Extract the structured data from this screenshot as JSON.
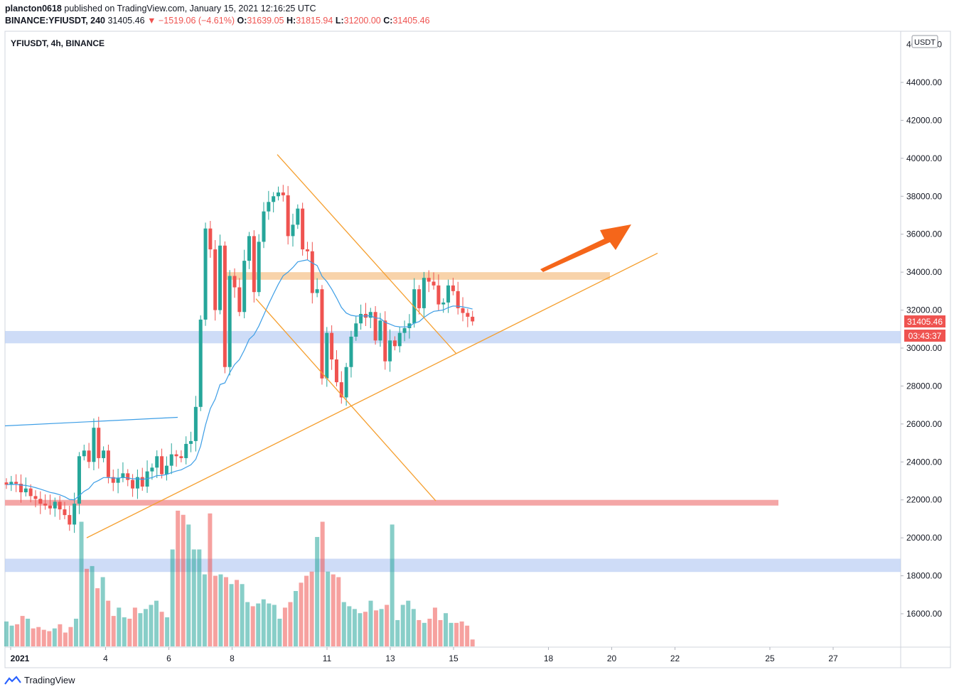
{
  "header": {
    "publisher": "plancton0618",
    "published_text": "published on TradingView.com, January 15, 2021 12:16:25 UTC",
    "symbol_line_prefix": "BINANCE:YFIUSDT, 240",
    "last": "31405.46",
    "change": "▼ −1519.06 (−4.61%)",
    "o_label": "O:",
    "o": "31639.05",
    "h_label": "H:",
    "h": "31815.94",
    "l_label": "L:",
    "l": "31200.00",
    "c_label": "C:",
    "c": "31405.46"
  },
  "pane_title": "YFIUSDT, 4h, BINANCE",
  "currency_label": "USDT",
  "price_badge": "31405.46",
  "countdown_badge": "03:43:37",
  "y_ticks": [
    "44000.00",
    "42000.00",
    "40000.00",
    "38000.00",
    "36000.00",
    "34000.00",
    "32000.00",
    "30000.00",
    "28000.00",
    "26000.00",
    "24000.00",
    "22000.00",
    "20000.00",
    "18000.00",
    "16000.00"
  ],
  "x_ticks": [
    "2021",
    "4",
    "6",
    "8",
    "11",
    "13",
    "15",
    "18",
    "20",
    "22",
    "25",
    "27"
  ],
  "footer_brand": "TradingView",
  "chart_data": {
    "type": "candlestick",
    "title": "YFIUSDT, 4h, BINANCE",
    "ylabel": "USDT",
    "ylim": [
      14500,
      46000
    ],
    "y_scale": "linear",
    "grid": false,
    "x_range": [
      "2021-01-01",
      "2021-01-28"
    ],
    "last_price": 31405.46,
    "countdown": "03:43:37",
    "price_series": [
      22800,
      22950,
      22850,
      22400,
      22600,
      22200,
      22050,
      21800,
      21700,
      21550,
      21900,
      21500,
      21200,
      20700,
      21800,
      24300,
      24600,
      24000,
      25800,
      24200,
      24600,
      23200,
      22900,
      23150,
      23400,
      23050,
      22600,
      23200,
      22700,
      23500,
      23700,
      24300,
      23350,
      23800,
      24400,
      24300,
      24200,
      24950,
      25100,
      26900,
      31500,
      36300,
      35200,
      32000,
      35400,
      29000,
      33800,
      33200,
      31900,
      34600,
      35900,
      32950,
      35600,
      37200,
      37700,
      38000,
      38200,
      38050,
      35900,
      36500,
      37350,
      35200,
      35100,
      32900,
      33100,
      28400,
      30800,
      29400,
      28200,
      27400,
      29000,
      30600,
      31300,
      31800,
      31600,
      31900,
      30400,
      31450,
      29300,
      30400,
      30100,
      30800,
      31050,
      31300,
      33100,
      32100,
      33700,
      33500,
      33300,
      32300,
      32400,
      33300,
      33000,
      32100,
      31850,
      31650,
      31405.46
    ],
    "ema": {
      "name": "EMA",
      "color": "#3d9ee6"
    },
    "volume_color_up": "#26a69a",
    "volume_color_down": "#ef5350",
    "volume_bars": [
      0.18,
      0.15,
      0.16,
      0.22,
      0.2,
      0.13,
      0.14,
      0.12,
      0.11,
      0.13,
      0.16,
      0.1,
      0.14,
      0.2,
      0.9,
      0.56,
      0.58,
      0.42,
      0.5,
      0.33,
      0.22,
      0.28,
      0.21,
      0.2,
      0.28,
      0.24,
      0.27,
      0.3,
      0.33,
      0.25,
      0.21,
      0.7,
      0.98,
      0.95,
      0.88,
      0.7,
      0.7,
      0.52,
      0.96,
      0.51,
      0.52,
      0.5,
      0.45,
      0.48,
      0.45,
      0.32,
      0.29,
      0.31,
      0.34,
      0.31,
      0.3,
      0.2,
      0.28,
      0.32,
      0.4,
      0.46,
      0.51,
      0.54,
      0.79,
      0.9,
      0.54,
      0.52,
      0.5,
      0.32,
      0.29,
      0.27,
      0.24,
      0.25,
      0.33,
      0.26,
      0.27,
      0.3,
      0.88,
      0.19,
      0.3,
      0.33,
      0.27,
      0.19,
      0.17,
      0.2,
      0.28,
      0.19,
      0.24,
      0.17,
      0.17,
      0.18,
      0.15,
      0.05
    ],
    "horizontal_zones": [
      {
        "name": "resistance-zone",
        "from": 33600,
        "to": 34000,
        "color": "#f5c48e"
      },
      {
        "name": "support-zone-upper",
        "from": 30250,
        "to": 30900,
        "color": "#b9cdf3"
      },
      {
        "name": "resistance-line-red",
        "value": 21850,
        "color": "#f4a6a6"
      },
      {
        "name": "support-zone-lower",
        "from": 18200,
        "to": 18900,
        "color": "#b9cdf3"
      }
    ],
    "annotations": [
      {
        "type": "arrow",
        "direction": "up-right",
        "color": "#f5661a"
      },
      {
        "type": "trendline",
        "color": "#f59f2f",
        "name": "ascending-support"
      },
      {
        "type": "trendline",
        "color": "#f59f2f",
        "name": "falling-channel-upper"
      },
      {
        "type": "trendline",
        "color": "#f59f2f",
        "name": "falling-channel-lower"
      },
      {
        "type": "trendline",
        "color": "#3d9ee6",
        "name": "early-blue-line"
      }
    ]
  }
}
